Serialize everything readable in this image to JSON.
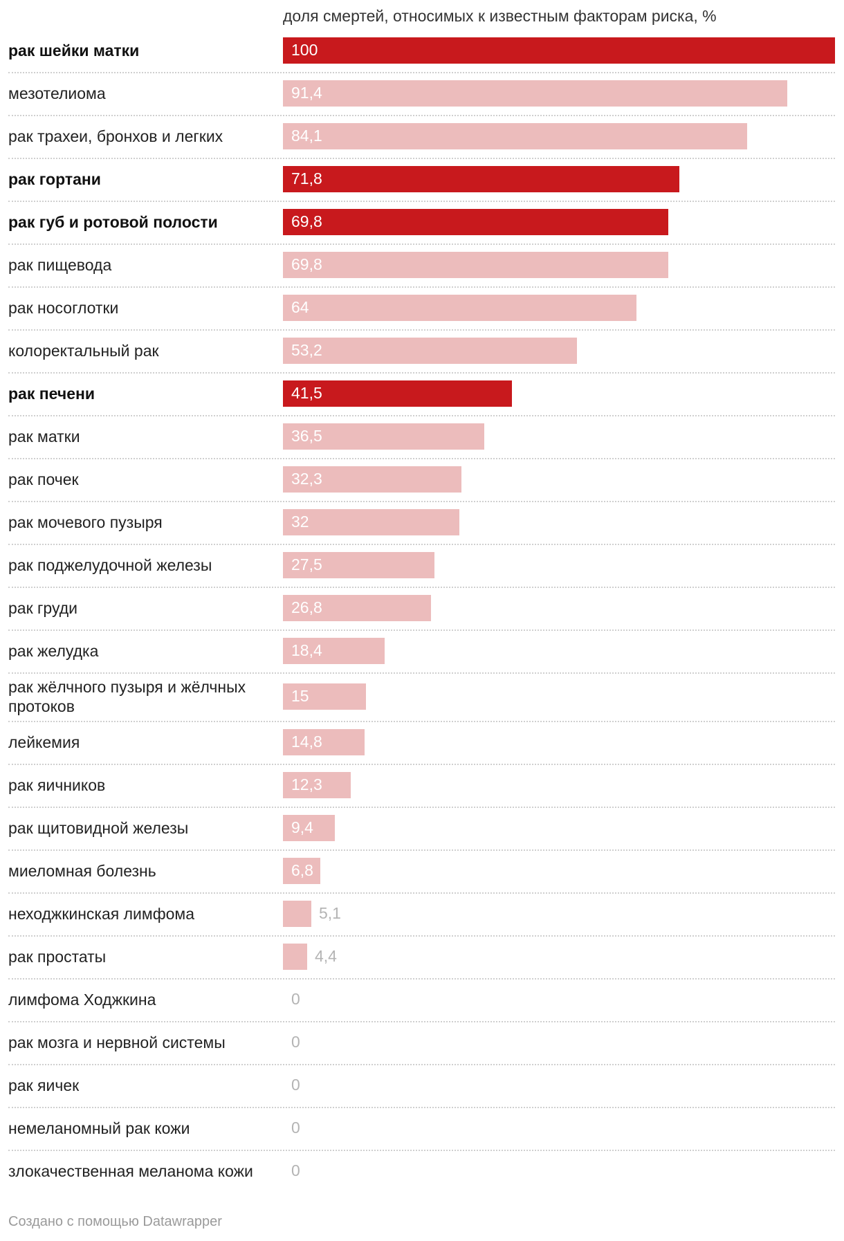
{
  "chart_data": {
    "type": "bar",
    "orientation": "horizontal",
    "title": "",
    "xlabel": "доля смертей, относимых к известным факторам риска, %",
    "ylabel": "",
    "xlim": [
      0,
      100
    ],
    "grid": false,
    "colors": {
      "highlight": "#c8191d",
      "normal": "#ecbcbc",
      "separator": "#cfcfcf"
    },
    "categories": [
      "рак шейки матки",
      "мезотелиома",
      "рак трахеи, бронхов и легких",
      "рак гортани",
      "рак губ и ротовой полости",
      "рак пищевода",
      "рак носоглотки",
      "колоректальный рак",
      "рак печени",
      "рак матки",
      "рак почек",
      "рак мочевого пузыря",
      "рак поджелудочной железы",
      "рак груди",
      "рак желудка",
      "рак жёлчного пузыря и жёлчных протоков",
      "лейкемия",
      "рак яичников",
      "рак щитовидной железы",
      "миеломная болезнь",
      "неходжкинская лимфома",
      "рак простаты",
      "лимфома Ходжкина",
      "рак мозга и нервной системы",
      "рак яичек",
      "немеланомный рак кожи",
      "злокачественная меланома кожи"
    ],
    "values": [
      100,
      91.4,
      84.1,
      71.8,
      69.8,
      69.8,
      64,
      53.2,
      41.5,
      36.5,
      32.3,
      32,
      27.5,
      26.8,
      18.4,
      15,
      14.8,
      12.3,
      9.4,
      6.8,
      5.1,
      4.4,
      0,
      0,
      0,
      0,
      0
    ],
    "value_labels": [
      "100",
      "91,4",
      "84,1",
      "71,8",
      "69,8",
      "69,8",
      "64",
      "53,2",
      "41,5",
      "36,5",
      "32,3",
      "32",
      "27,5",
      "26,8",
      "18,4",
      "15",
      "14,8",
      "12,3",
      "9,4",
      "6,8",
      "5,1",
      "4,4",
      "0",
      "0",
      "0",
      "0",
      "0"
    ],
    "highlighted": [
      true,
      false,
      false,
      true,
      true,
      false,
      false,
      false,
      true,
      false,
      false,
      false,
      false,
      false,
      false,
      false,
      false,
      false,
      false,
      false,
      false,
      false,
      false,
      false,
      false,
      false,
      false
    ]
  },
  "footer": {
    "credit": "Создано с помощью Datawrapper"
  }
}
